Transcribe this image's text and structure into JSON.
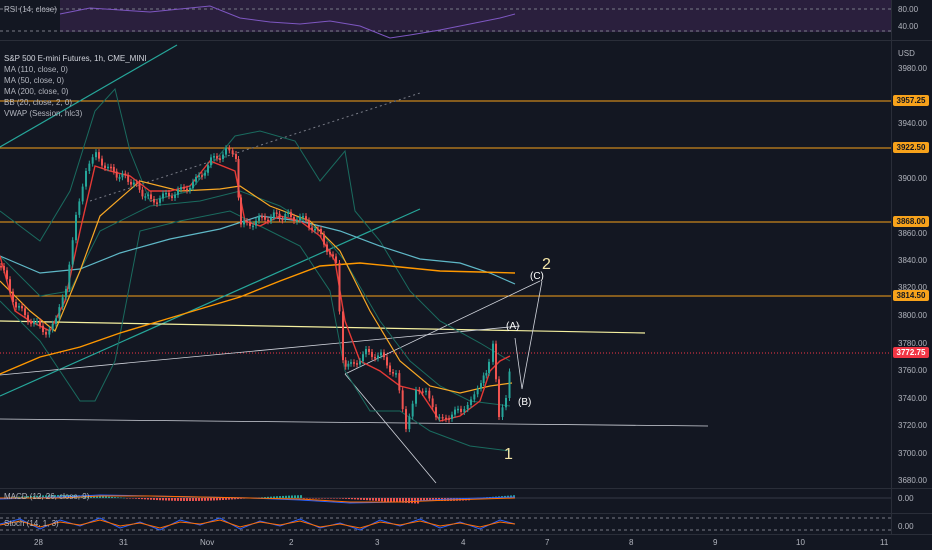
{
  "rsi_pane": {
    "legend": "RSI (14, close)",
    "ticks": [
      "80.00",
      "40.00"
    ]
  },
  "main_pane": {
    "legend_lines": [
      "S&P 500 E-mini Futures, 1h, CME_MINI",
      "MA (110, close, 0)",
      "MA (50, close, 0)",
      "MA (200, close, 0)",
      "BB (20, close, 2, 0)",
      "VWAP (Session, hlc3)"
    ],
    "currency": "USD",
    "price_ticks": [
      "3980.00",
      "3940.00",
      "3900.00",
      "3860.00",
      "3840.00",
      "3820.00",
      "3800.00",
      "3780.00",
      "3760.00",
      "3740.00",
      "3720.00",
      "3700.00",
      "3680.00"
    ],
    "level_tags": [
      "3957.25",
      "3922.50",
      "3868.00",
      "3814.50"
    ],
    "last_price": "3772.75",
    "wave_labels": {
      "two": "2",
      "one": "1",
      "c": "(C)",
      "a": "(A)",
      "b": "(B)"
    },
    "colors": {
      "orange_level": "#f7a21b",
      "last_price": "#f23645",
      "up": "#26a69a",
      "down": "#ef5350",
      "bb": "#1a6b5f",
      "ma110": "#5fb8c7",
      "ma50": "#f9a825",
      "ma200": "#ff9800"
    }
  },
  "macd_pane": {
    "legend": "MACD (12, 26, close, 9)",
    "tick": "0.00"
  },
  "stoch_pane": {
    "legend": "Stoch (14, 1, 3)",
    "tick": "0.00"
  },
  "time_axis": {
    "labels": [
      "28",
      "31",
      "Nov",
      "2",
      "3",
      "4",
      "7",
      "8",
      "9",
      "10",
      "11"
    ]
  }
}
